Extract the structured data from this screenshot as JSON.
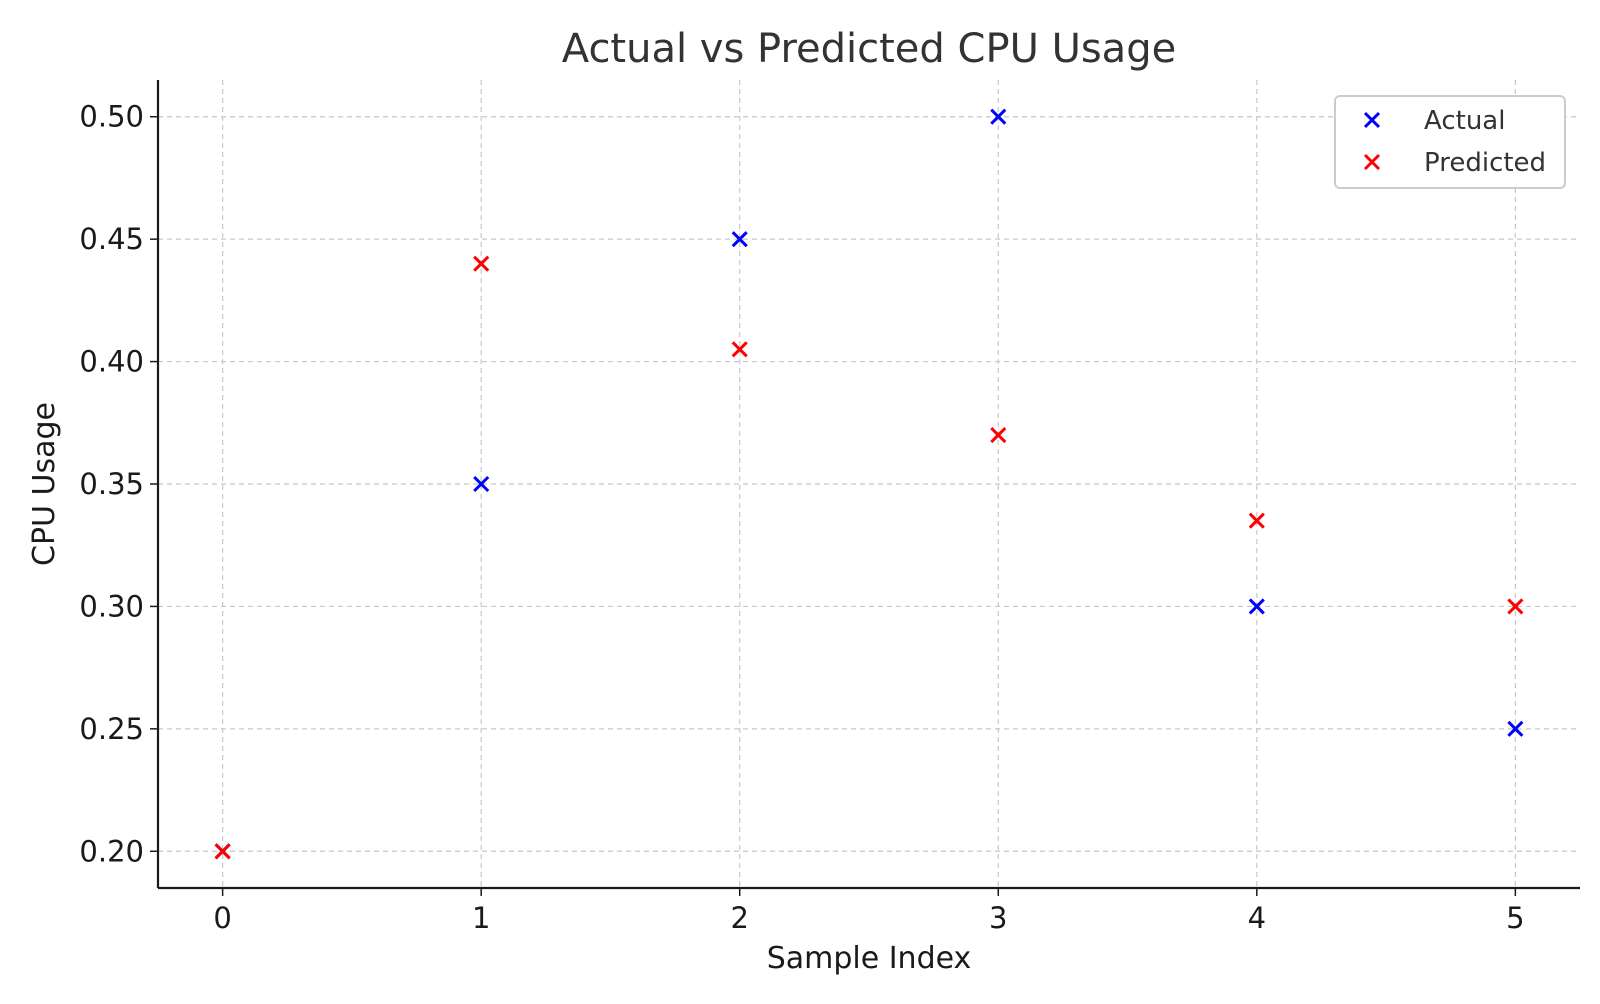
{
  "chart_data": {
    "type": "scatter",
    "title": "Actual vs Predicted CPU Usage",
    "xlabel": "Sample Index",
    "ylabel": "CPU Usage",
    "x": [
      0,
      1,
      2,
      3,
      4,
      5
    ],
    "xlim": [
      -0.25,
      5.25
    ],
    "ylim": [
      0.185,
      0.515
    ],
    "xticks": [
      0,
      1,
      2,
      3,
      4,
      5
    ],
    "xtick_labels": [
      "0",
      "1",
      "2",
      "3",
      "4",
      "5"
    ],
    "yticks": [
      0.2,
      0.25,
      0.3,
      0.35,
      0.4,
      0.45,
      0.5
    ],
    "ytick_labels": [
      "0.20",
      "0.25",
      "0.30",
      "0.35",
      "0.40",
      "0.45",
      "0.50"
    ],
    "grid": true,
    "legend_position": "top-right",
    "marker": "x",
    "series": [
      {
        "name": "Actual",
        "color": "#0000ff",
        "values": [
          0.2,
          0.35,
          0.45,
          0.5,
          0.3,
          0.25
        ]
      },
      {
        "name": "Predicted",
        "color": "#ff0000",
        "values": [
          0.2,
          0.44,
          0.405,
          0.37,
          0.335,
          0.3
        ]
      }
    ]
  }
}
